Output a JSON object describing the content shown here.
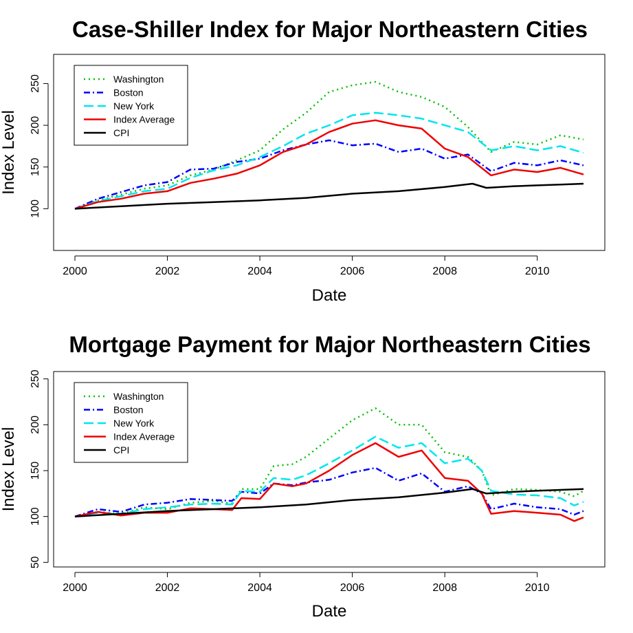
{
  "chart_data": [
    {
      "type": "line",
      "title": "Case-Shiller Index for Major Northeastern Cities",
      "xlabel": "Date",
      "ylabel": "Index Level",
      "xlim": [
        2000,
        2011
      ],
      "ylim": [
        50,
        285
      ],
      "xticks": [
        2000,
        2002,
        2004,
        2006,
        2008,
        2010
      ],
      "yticks": [
        100,
        150,
        200,
        250
      ],
      "legend": {
        "position": "top-left"
      },
      "grid": false,
      "series": [
        {
          "name": "Washington",
          "color": "#00c000",
          "dash": "2 5",
          "width": 2.5,
          "x": [
            2000,
            2000.5,
            2001,
            2001.5,
            2002,
            2002.5,
            2003,
            2003.5,
            2004,
            2004.5,
            2005,
            2005.5,
            2006,
            2006.5,
            2007,
            2007.5,
            2008,
            2008.5,
            2009,
            2009.5,
            2010,
            2010.5,
            2011
          ],
          "y": [
            100,
            110,
            117,
            124,
            128,
            140,
            147,
            158,
            170,
            195,
            215,
            240,
            248,
            252,
            240,
            234,
            222,
            198,
            168,
            180,
            177,
            188,
            183
          ]
        },
        {
          "name": "Boston",
          "color": "#0000ff",
          "dash": "9 4 2 4",
          "width": 2.5,
          "x": [
            2000,
            2000.5,
            2001,
            2001.5,
            2002,
            2002.5,
            2003,
            2003.5,
            2004,
            2004.5,
            2005,
            2005.5,
            2006,
            2006.5,
            2007,
            2007.5,
            2008,
            2008.5,
            2009,
            2009.5,
            2010,
            2010.5,
            2011
          ],
          "y": [
            100,
            112,
            120,
            128,
            132,
            147,
            148,
            156,
            160,
            170,
            177,
            182,
            176,
            178,
            168,
            172,
            160,
            165,
            145,
            155,
            152,
            158,
            152
          ]
        },
        {
          "name": "New York",
          "color": "#00e5ee",
          "dash": "14 6",
          "width": 2.5,
          "x": [
            2000,
            2000.5,
            2001,
            2001.5,
            2002,
            2002.5,
            2003,
            2003.5,
            2004,
            2004.5,
            2005,
            2005.5,
            2006,
            2006.5,
            2007,
            2007.5,
            2008,
            2008.5,
            2009,
            2009.5,
            2010,
            2010.5,
            2011
          ],
          "y": [
            100,
            109,
            115,
            121,
            124,
            137,
            146,
            152,
            162,
            175,
            190,
            200,
            212,
            215,
            212,
            208,
            200,
            192,
            170,
            175,
            170,
            175,
            167
          ]
        },
        {
          "name": "Index Average",
          "color": "#ee0000",
          "dash": "",
          "width": 2.5,
          "x": [
            2000,
            2000.5,
            2001,
            2001.5,
            2002,
            2002.5,
            2003,
            2003.5,
            2004,
            2004.5,
            2005,
            2005.5,
            2006,
            2006.5,
            2007,
            2007.5,
            2008,
            2008.5,
            2009,
            2009.5,
            2010,
            2010.5,
            2011
          ],
          "y": [
            100,
            108,
            112,
            118,
            121,
            131,
            136,
            142,
            152,
            168,
            177,
            192,
            202,
            206,
            200,
            196,
            172,
            162,
            140,
            147,
            144,
            149,
            141
          ]
        },
        {
          "name": "CPI",
          "color": "#000000",
          "dash": "",
          "width": 2.5,
          "x": [
            2000,
            2001,
            2002,
            2003,
            2004,
            2005,
            2006,
            2007,
            2008,
            2008.6,
            2008.9,
            2009.5,
            2010,
            2010.5,
            2011
          ],
          "y": [
            100,
            103,
            106,
            108,
            110,
            113,
            118,
            121,
            126,
            130,
            125,
            127,
            128,
            129,
            130
          ]
        }
      ]
    },
    {
      "type": "line",
      "title": "Mortgage Payment for Major Northeastern Cities",
      "xlabel": "Date",
      "ylabel": "Index Level",
      "xlim": [
        2000,
        2011
      ],
      "ylim": [
        45,
        258
      ],
      "xticks": [
        2000,
        2002,
        2004,
        2006,
        2008,
        2010
      ],
      "yticks": [
        50,
        100,
        150,
        200,
        250
      ],
      "legend": {
        "position": "top-left"
      },
      "grid": false,
      "series": [
        {
          "name": "Washington",
          "color": "#00c000",
          "dash": "2 5",
          "width": 2.5,
          "x": [
            2000,
            2000.5,
            2001,
            2001.5,
            2002,
            2002.5,
            2003,
            2003.4,
            2003.6,
            2004,
            2004.3,
            2004.7,
            2005,
            2005.5,
            2006,
            2006.5,
            2007,
            2007.5,
            2008,
            2008.5,
            2008.8,
            2009,
            2009.5,
            2010,
            2010.5,
            2010.8,
            2011
          ],
          "y": [
            100,
            105,
            103,
            110,
            108,
            115,
            117,
            114,
            130,
            130,
            155,
            157,
            165,
            185,
            205,
            218,
            200,
            200,
            170,
            165,
            150,
            123,
            130,
            129,
            127,
            122,
            128
          ]
        },
        {
          "name": "Boston",
          "color": "#0000ff",
          "dash": "9 4 2 4",
          "width": 2.5,
          "x": [
            2000,
            2000.5,
            2001,
            2001.5,
            2002,
            2002.5,
            2003,
            2003.4,
            2003.6,
            2004,
            2004.3,
            2004.7,
            2005,
            2005.5,
            2006,
            2006.5,
            2007,
            2007.5,
            2008,
            2008.5,
            2008.8,
            2009,
            2009.5,
            2010,
            2010.5,
            2010.8,
            2011
          ],
          "y": [
            100,
            108,
            105,
            113,
            115,
            119,
            118,
            117,
            127,
            125,
            136,
            134,
            137,
            140,
            148,
            153,
            139,
            147,
            127,
            133,
            125,
            108,
            114,
            110,
            108,
            102,
            106
          ]
        },
        {
          "name": "New York",
          "color": "#00e5ee",
          "dash": "14 6",
          "width": 2.5,
          "x": [
            2000,
            2000.5,
            2001,
            2001.5,
            2002,
            2002.5,
            2003,
            2003.4,
            2003.6,
            2004,
            2004.3,
            2004.7,
            2005,
            2005.5,
            2006,
            2006.5,
            2007,
            2007.5,
            2008,
            2008.5,
            2008.8,
            2009,
            2009.5,
            2010,
            2010.5,
            2010.8,
            2011
          ],
          "y": [
            100,
            104,
            103,
            108,
            110,
            113,
            114,
            113,
            128,
            127,
            142,
            140,
            145,
            158,
            172,
            187,
            175,
            180,
            158,
            163,
            150,
            128,
            124,
            123,
            120,
            112,
            116
          ]
        },
        {
          "name": "Index Average",
          "color": "#ee0000",
          "dash": "",
          "width": 2.5,
          "x": [
            2000,
            2000.5,
            2001,
            2001.5,
            2002,
            2002.5,
            2003,
            2003.4,
            2003.6,
            2004,
            2004.3,
            2004.7,
            2005,
            2005.5,
            2006,
            2006.5,
            2007,
            2007.5,
            2008,
            2008.5,
            2008.8,
            2009,
            2009.5,
            2010,
            2010.5,
            2010.8,
            2011
          ],
          "y": [
            100,
            105,
            101,
            104,
            104,
            109,
            108,
            107,
            120,
            119,
            136,
            133,
            136,
            150,
            167,
            180,
            165,
            172,
            142,
            139,
            125,
            103,
            106,
            104,
            102,
            95,
            99
          ]
        },
        {
          "name": "CPI",
          "color": "#000000",
          "dash": "",
          "width": 2.5,
          "x": [
            2000,
            2001,
            2002,
            2003,
            2004,
            2005,
            2006,
            2007,
            2008,
            2008.6,
            2008.9,
            2009.5,
            2010,
            2010.5,
            2011
          ],
          "y": [
            100,
            103,
            106,
            108,
            110,
            113,
            118,
            121,
            126,
            130,
            125,
            127,
            128,
            129,
            130
          ]
        }
      ]
    }
  ]
}
